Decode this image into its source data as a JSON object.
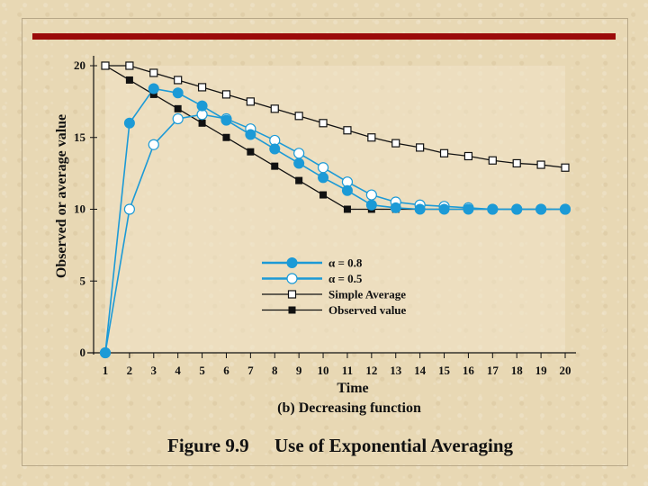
{
  "chart_data": {
    "type": "line",
    "title": "Use of Exponential Averaging",
    "figure_number": "Figure 9.9",
    "subtitle": "(b) Decreasing function",
    "xlabel": "Time",
    "ylabel": "Observed or average value",
    "x": [
      1,
      2,
      3,
      4,
      5,
      6,
      7,
      8,
      9,
      10,
      11,
      12,
      13,
      14,
      15,
      16,
      17,
      18,
      19,
      20
    ],
    "xlim": [
      1,
      20
    ],
    "ylim": [
      0,
      20
    ],
    "yticks": [
      0,
      5,
      10,
      15,
      20
    ],
    "series": [
      {
        "name": "α = 0.8",
        "values": [
          0,
          16,
          18.4,
          18.1,
          17.2,
          16.2,
          15.2,
          14.2,
          13.2,
          12.2,
          11.3,
          10.3,
          10.1,
          10,
          10,
          10,
          10,
          10,
          10,
          10
        ],
        "color": "#1c9ad6",
        "marker": "filled-circle"
      },
      {
        "name": "α = 0.5",
        "values": [
          0,
          10,
          14.5,
          16.3,
          16.6,
          16.3,
          15.6,
          14.8,
          13.9,
          12.9,
          11.9,
          11,
          10.5,
          10.3,
          10.2,
          10.1,
          10,
          10,
          10,
          10
        ],
        "color": "#1c9ad6",
        "marker": "open-circle"
      },
      {
        "name": "Simple Average",
        "values": [
          20,
          20,
          19.5,
          19,
          18.5,
          18,
          17.5,
          17,
          16.5,
          16,
          15.5,
          15,
          14.6,
          14.3,
          13.9,
          13.7,
          13.4,
          13.2,
          13.1,
          12.9
        ],
        "color": "#111111",
        "marker": "open-square"
      },
      {
        "name": "Observed value",
        "values": [
          20,
          19,
          18,
          17,
          16,
          15,
          14,
          13,
          12,
          11,
          10,
          10,
          10,
          10,
          10,
          10,
          10,
          10,
          10,
          10
        ],
        "color": "#111111",
        "marker": "filled-square"
      }
    ],
    "legend": "center",
    "grid": false
  },
  "colors": {
    "accent_rule": "#9b0a0a",
    "alpha_series": "#1c9ad6",
    "background": "#e8d8b4"
  }
}
